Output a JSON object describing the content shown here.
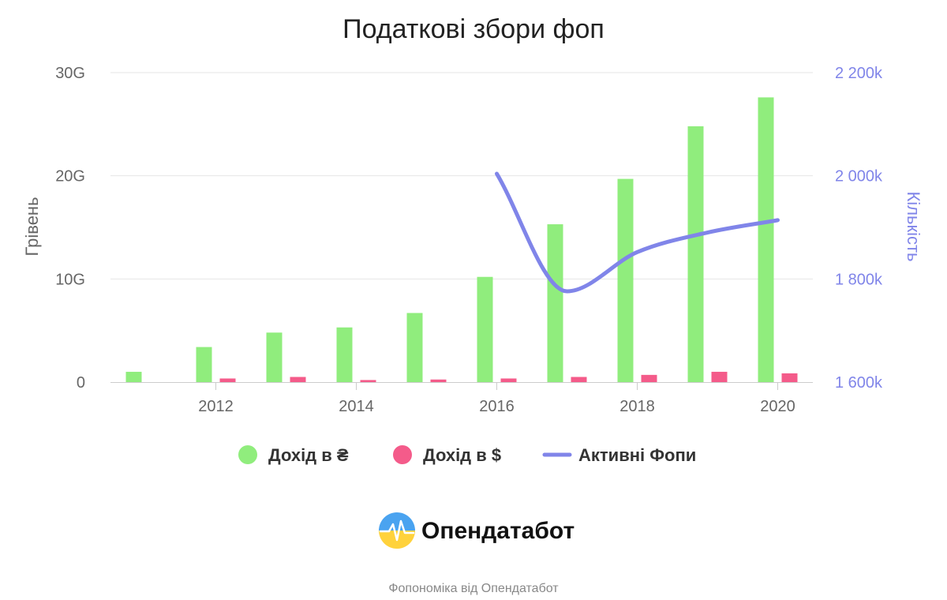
{
  "chart_data": {
    "type": "bar+line",
    "title": "Податкові збори фоп",
    "y_left_label": "Грівень",
    "y_right_label": "Кількість",
    "y_left_ticks": [
      "0",
      "10G",
      "20G",
      "30G"
    ],
    "y_left_range": [
      0,
      30
    ],
    "y_left_unit": "G",
    "y_right_ticks": [
      "1 600k",
      "1 800k",
      "2 000k",
      "2 200k"
    ],
    "y_right_range": [
      1600,
      2200
    ],
    "y_right_unit": "k",
    "x_ticks": [
      "2012",
      "2014",
      "2016",
      "2018",
      "2020"
    ],
    "x_range": [
      2011,
      2020
    ],
    "categories": [
      "2011",
      "2012",
      "2013",
      "2014",
      "2015",
      "2016",
      "2017",
      "2018",
      "2019",
      "2020"
    ],
    "series": [
      {
        "name": "Дохід в ₴",
        "kind": "bar",
        "color": "#90ed7d",
        "axis": "left",
        "values": [
          1.0,
          3.4,
          4.8,
          5.3,
          6.7,
          10.2,
          15.3,
          19.7,
          24.8,
          27.6
        ]
      },
      {
        "name": "Дохід в $",
        "kind": "bar",
        "color": "#f45b8a",
        "axis": "left",
        "values": [
          0.0,
          0.35,
          0.5,
          0.2,
          0.25,
          0.35,
          0.5,
          0.7,
          1.0,
          0.85
        ]
      },
      {
        "name": "Активні Фопи",
        "kind": "line",
        "color": "#8085e9",
        "axis": "right",
        "x": [
          2016,
          2017,
          2018,
          2019,
          2020
        ],
        "values": [
          2004,
          1776,
          1852,
          1890,
          1914
        ]
      }
    ],
    "legend_position": "bottom-center",
    "grid": true
  },
  "branding": {
    "logo_text": "Опендатабот",
    "credits": "Фопономіка від Опендатабот"
  }
}
